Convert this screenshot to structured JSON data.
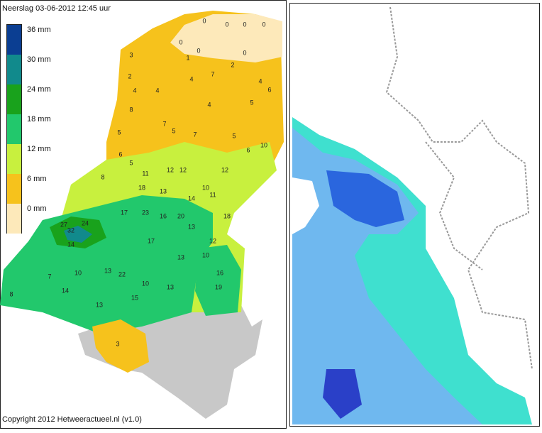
{
  "header": {
    "title": "Neerslag 03-06-2012  12:45 uur"
  },
  "legend": [
    {
      "label": "36 mm",
      "color": "#0b3e92"
    },
    {
      "label": "30 mm",
      "color": "#118a8c"
    },
    {
      "label": "24 mm",
      "color": "#19a21c"
    },
    {
      "label": "18 mm",
      "color": "#22c86c"
    },
    {
      "label": "12 mm",
      "color": "#c8f03e"
    },
    {
      "label": "6 mm",
      "color": "#f6c21c"
    },
    {
      "label": "0 mm",
      "color": "#fde9ba"
    }
  ],
  "stations": [
    0,
    0,
    0,
    0,
    0,
    0,
    0,
    3,
    2,
    4,
    8,
    1,
    2,
    7,
    4,
    4,
    6,
    4,
    4,
    5,
    5,
    7,
    5,
    6,
    10,
    5,
    7,
    6,
    5,
    11,
    12,
    12,
    10,
    12,
    8,
    18,
    13,
    14,
    11,
    23,
    17,
    16,
    20,
    13,
    18,
    27,
    24,
    14,
    17,
    13,
    10,
    13,
    22,
    10,
    13,
    7,
    14,
    10,
    13,
    15,
    8,
    12,
    16,
    19,
    3,
    32
  ],
  "footer": {
    "copyright": "Copyright 2012 Hetweeractueel.nl (v1.0)"
  }
}
